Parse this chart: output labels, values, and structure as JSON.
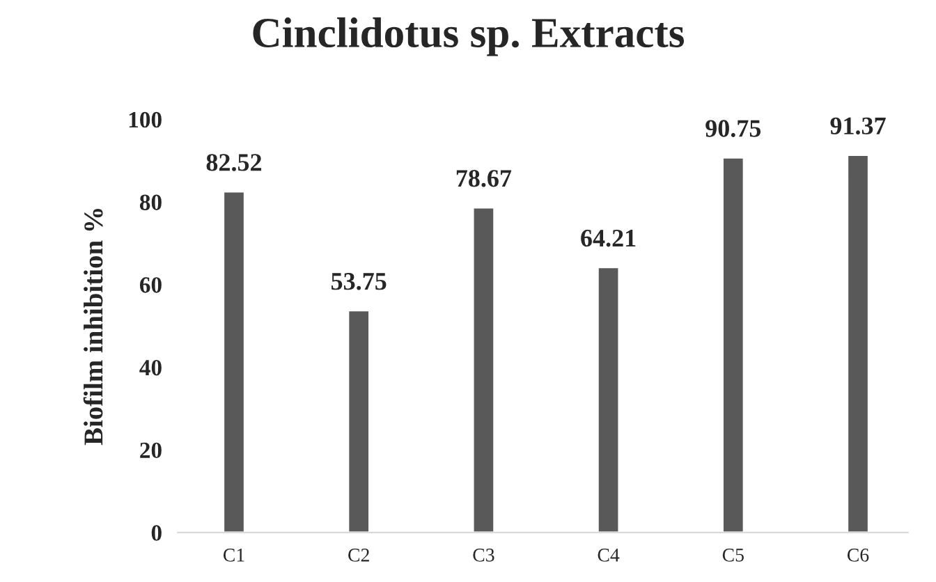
{
  "chart_data": {
    "type": "bar",
    "title": "Cinclidotus sp. Extracts",
    "ylabel": "Biofilm inhibition %",
    "categories": [
      "C1",
      "C2",
      "C3",
      "C4",
      "C5",
      "C6"
    ],
    "values": [
      82.52,
      53.75,
      78.67,
      64.21,
      90.75,
      91.37
    ],
    "color": "#595959",
    "ylim": [
      0,
      100
    ],
    "yticks": [
      0,
      20,
      40,
      60,
      80,
      100
    ],
    "data_labels": true,
    "grid": false,
    "legend": false
  }
}
